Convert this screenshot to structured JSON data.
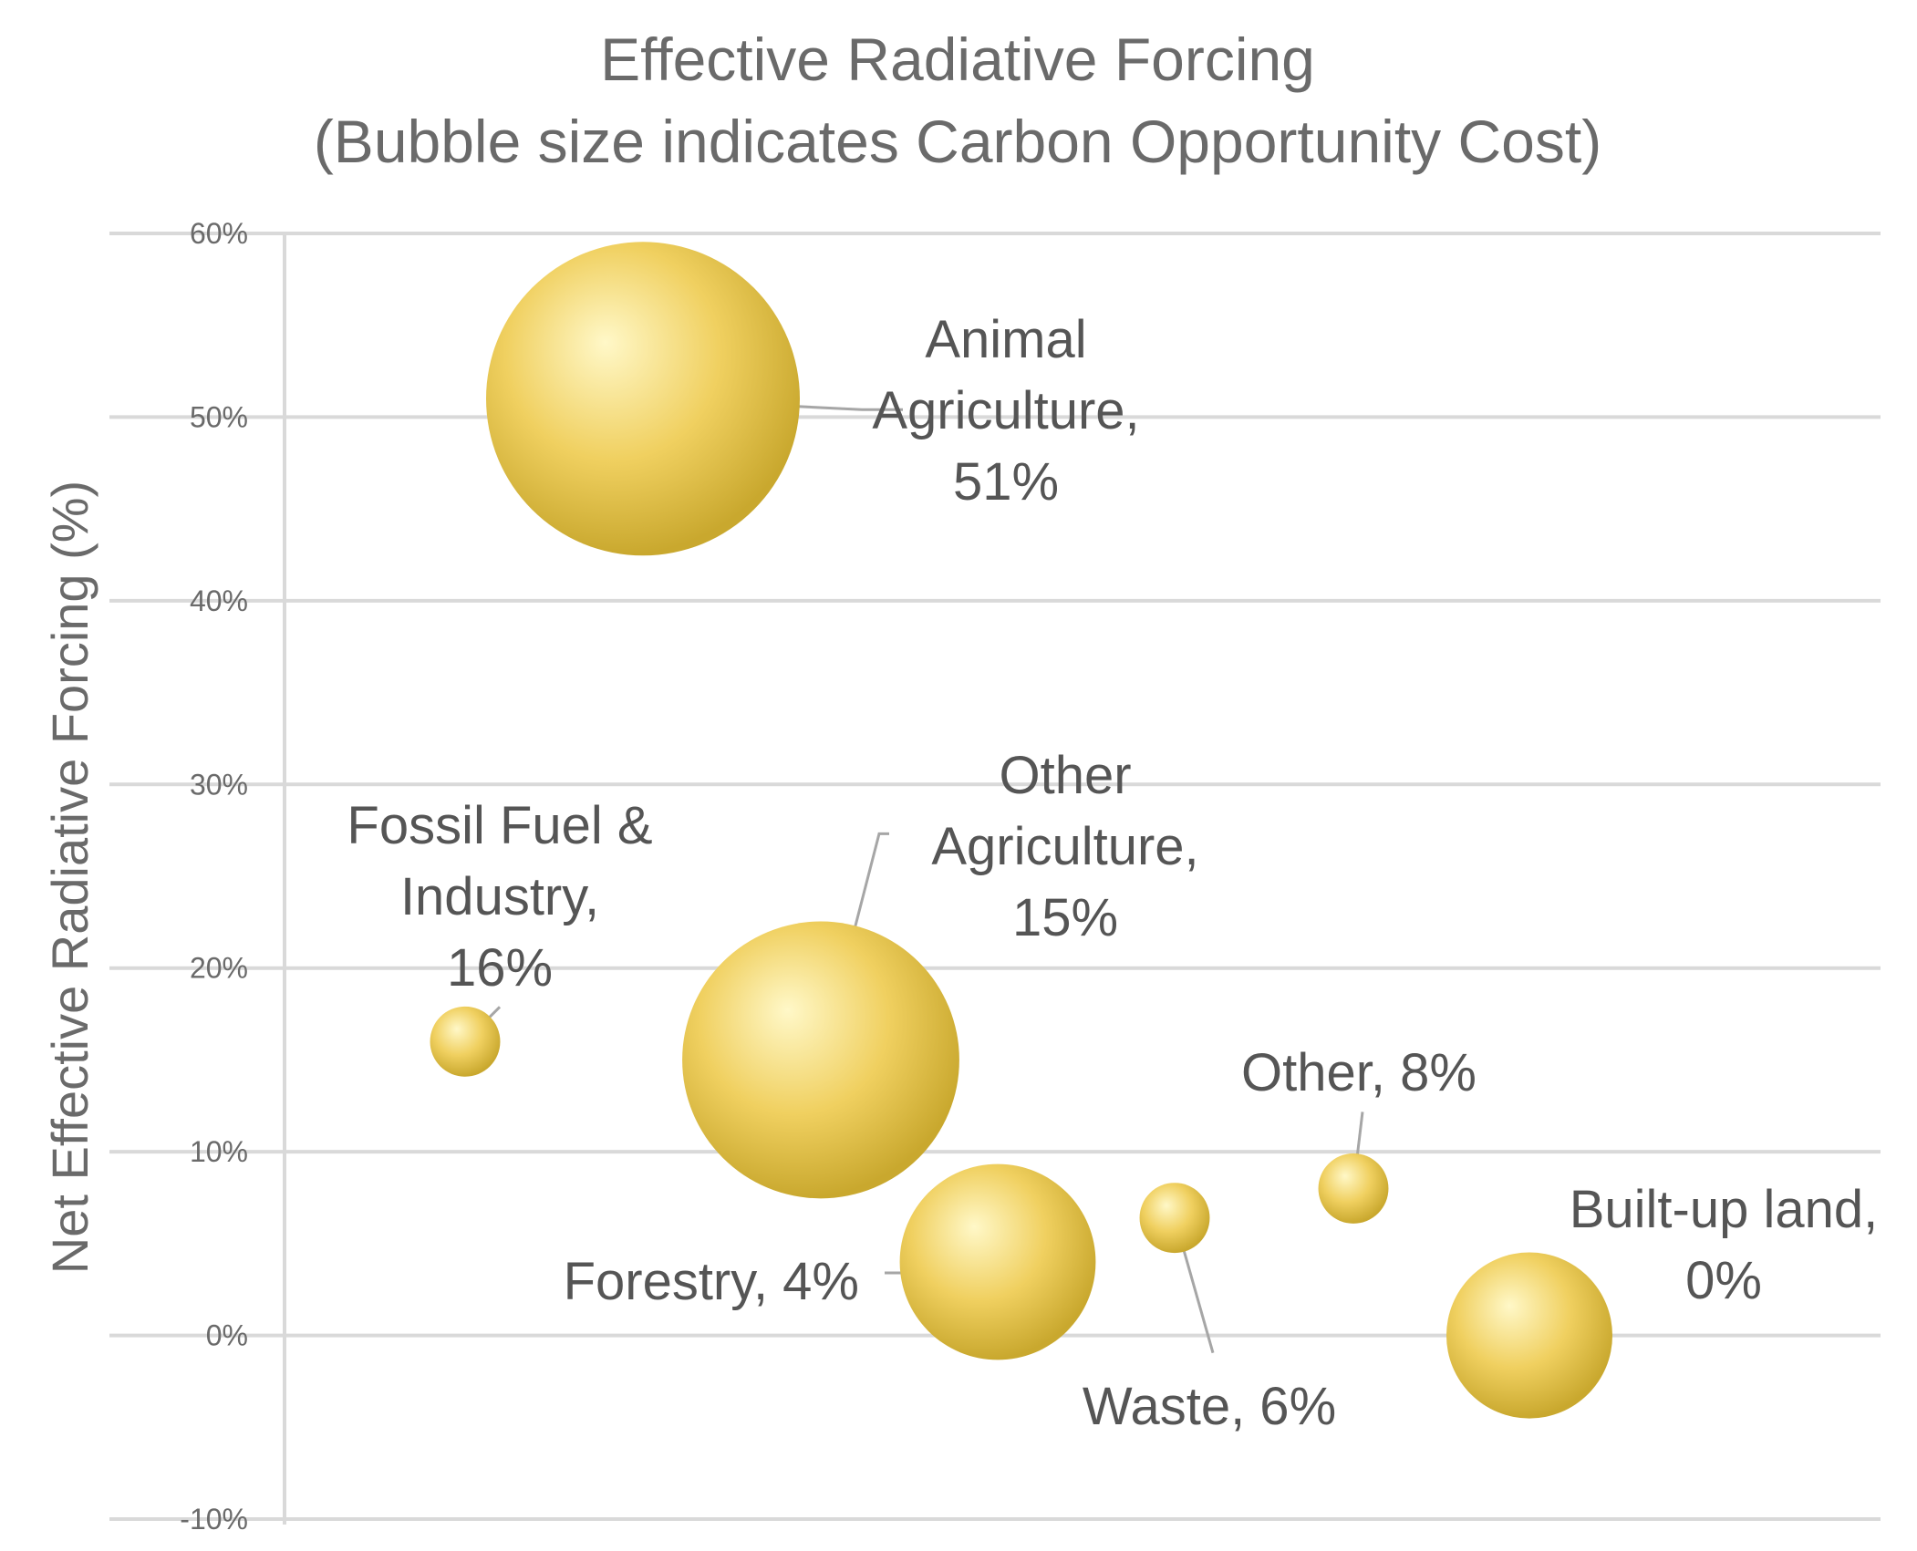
{
  "chart_data": {
    "type": "bubble",
    "title": [
      "Effective  Radiative Forcing",
      "(Bubble size indicates Carbon Opportunity Cost)"
    ],
    "ylabel": "Net Effective Radiative  Forcing (%)",
    "xlabel": "",
    "ylim": [
      -10,
      60
    ],
    "yticks": [
      60,
      50,
      40,
      30,
      20,
      10,
      0,
      -10
    ],
    "ytick_labels": [
      "60%",
      "50%",
      "40%",
      "30%",
      "20%",
      "10%",
      "0%",
      "-10%"
    ],
    "grid": true,
    "series": [
      {
        "name": "Animal Agriculture",
        "x": 2,
        "y": 51,
        "size": 1.0,
        "label": [
          "Animal",
          "Agriculture,",
          "51%"
        ]
      },
      {
        "name": "Fossil Fuel & Industry",
        "x": 1,
        "y": 16,
        "size": 0.05,
        "label": [
          "Fossil Fuel &",
          "Industry,",
          "16%"
        ]
      },
      {
        "name": "Other Agriculture",
        "x": 3,
        "y": 15,
        "size": 0.78,
        "label": [
          "Other",
          "Agriculture,",
          "15%"
        ]
      },
      {
        "name": "Forestry",
        "x": 4,
        "y": 4,
        "size": 0.39,
        "label": [
          "Forestry, 4%"
        ]
      },
      {
        "name": "Waste",
        "x": 5,
        "y": 6.4,
        "size": 0.05,
        "label": [
          "Waste, 6%"
        ]
      },
      {
        "name": "Other",
        "x": 6,
        "y": 8,
        "size": 0.05,
        "label": [
          "Other, 8%"
        ]
      },
      {
        "name": "Built-up land",
        "x": 7,
        "y": 0,
        "size": 0.28,
        "label": [
          "Built-up land,",
          "0%"
        ]
      }
    ],
    "bubble_color": "#f0d060",
    "bubble_highlight": "#fff8c8",
    "bubble_shadow": "#c9a82e"
  }
}
